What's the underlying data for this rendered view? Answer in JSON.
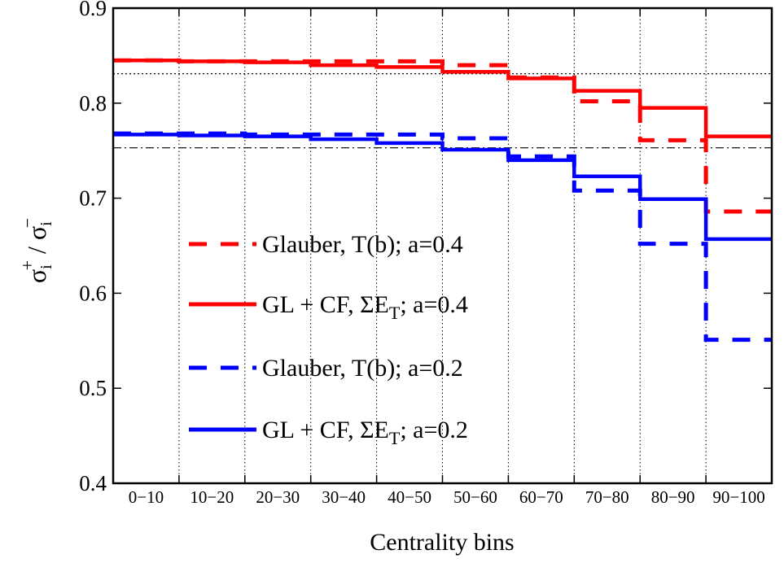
{
  "chart_data": {
    "type": "line",
    "title": "",
    "xlabel": "Centrality bins",
    "ylabel_parts": {
      "symbol": "σ",
      "sup1": "+",
      "sub1": "i",
      "slash": " / ",
      "sup2": "−",
      "sub2": "i"
    },
    "ylim": [
      0.4,
      0.9
    ],
    "xlim": [
      0,
      10
    ],
    "yticks": [
      0.4,
      0.5,
      0.6,
      0.7,
      0.8,
      0.9
    ],
    "ytick_labels": [
      "0.4",
      "0.5",
      "0.6",
      "0.7",
      "0.8",
      "0.9"
    ],
    "categories": [
      "0−10",
      "10−20",
      "20−30",
      "30−40",
      "40−50",
      "50−60",
      "60−70",
      "70−80",
      "80−90",
      "90−100"
    ],
    "grid": "vertical dotted at bin edges",
    "reference_lines": [
      {
        "y": 0.831,
        "style": "dotted",
        "color": "#000000"
      },
      {
        "y": 0.753,
        "style": "dash-dot",
        "color": "#000000"
      }
    ],
    "series": [
      {
        "name": "Glauber, T(b); a=0.4",
        "style": "dashed",
        "color": "#ff0000",
        "values": [
          0.845,
          0.844,
          0.844,
          0.844,
          0.844,
          0.84,
          0.827,
          0.802,
          0.761,
          0.686
        ]
      },
      {
        "name": "GL + CF, ΣE_T; a=0.4",
        "style": "solid",
        "color": "#ff0000",
        "values": [
          0.845,
          0.844,
          0.843,
          0.84,
          0.838,
          0.833,
          0.826,
          0.813,
          0.795,
          0.765
        ]
      },
      {
        "name": "Glauber, T(b); a=0.2",
        "style": "dashed",
        "color": "#0000ff",
        "values": [
          0.768,
          0.768,
          0.767,
          0.767,
          0.767,
          0.763,
          0.744,
          0.708,
          0.652,
          0.551
        ]
      },
      {
        "name": "GL + CF, ΣE_T; a=0.2",
        "style": "solid",
        "color": "#0000ff",
        "values": [
          0.767,
          0.766,
          0.765,
          0.762,
          0.758,
          0.751,
          0.74,
          0.723,
          0.699,
          0.657
        ]
      }
    ],
    "legend": {
      "placement": "lower-left",
      "entries": [
        {
          "series": 0,
          "text": "Glauber, T(b); a=0.4"
        },
        {
          "series": 1,
          "text_main": "GL + CF, ΣE",
          "text_sub": "T",
          "text_tail": "; a=0.4"
        },
        {
          "series": 2,
          "text": "Glauber, T(b); a=0.2"
        },
        {
          "series": 3,
          "text_main": "GL + CF, ΣE",
          "text_sub": "T",
          "text_tail": "; a=0.2"
        }
      ]
    }
  }
}
